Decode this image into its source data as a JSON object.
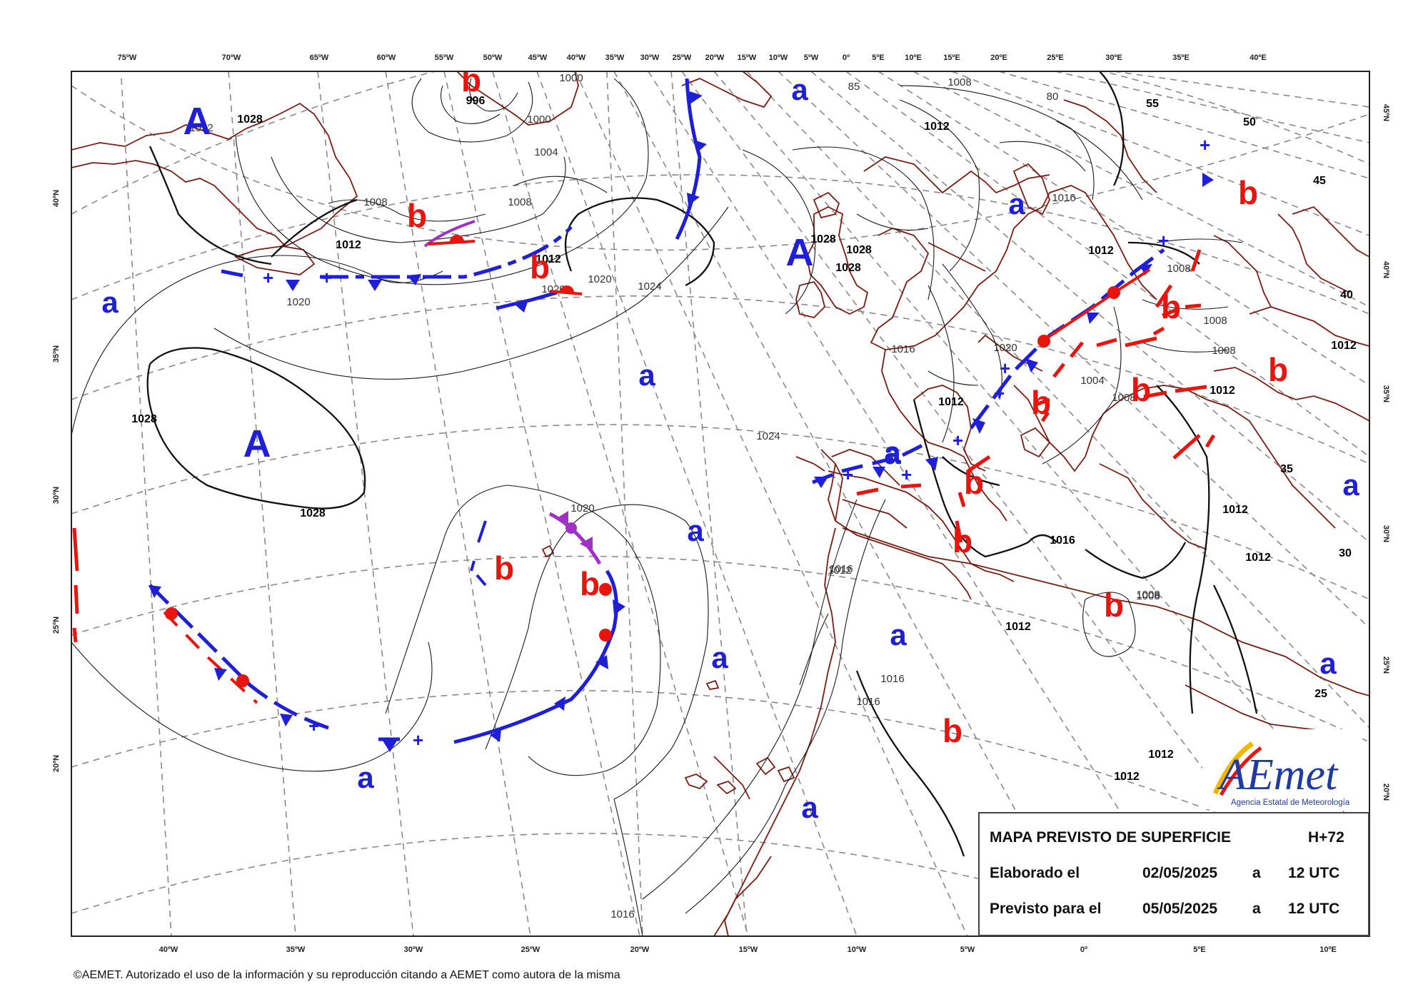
{
  "map": {
    "top_longitudes": [
      "75ºW",
      "70ºW",
      "65ºW",
      "60ºW",
      "55ºW",
      "50ºW",
      "45ºW",
      "40ºW",
      "35ºW",
      "30ºW",
      "25ºW",
      "20ºW",
      "15ºW",
      "10ºW",
      "5ºW",
      "0º",
      "5ºE",
      "10ºE",
      "15ºE",
      "20ºE",
      "25ºE",
      "30ºE",
      "35ºE",
      "40ºE"
    ],
    "bottom_longitudes": [
      "40ºW",
      "35ºW",
      "30ºW",
      "25ºW",
      "20ºW",
      "15ºW",
      "10ºW",
      "5ºW",
      "0º",
      "5ºE",
      "10ºE"
    ],
    "left_latitudes": [
      "40ºN",
      "35ºN",
      "30ºN",
      "25ºN",
      "20ºN"
    ],
    "right_latitudes": [
      "45ºN",
      "40ºN",
      "35ºN",
      "30ºN",
      "25ºN",
      "20ºN"
    ],
    "isobar_labels": [
      "1028",
      "1032",
      "1008",
      "1012",
      "1020",
      "1000",
      "1000",
      "996",
      "1004",
      "1008",
      "1020",
      "1024",
      "1012",
      "1020",
      "1028",
      "1028",
      "1028",
      "1028",
      "1024",
      "1028",
      "1016",
      "1008",
      "1012",
      "1012",
      "1016",
      "1020",
      "1004",
      "1008",
      "1008",
      "1008",
      "1008",
      "1012",
      "1012",
      "1012",
      "1016",
      "1016",
      "1016",
      "1016",
      "1012",
      "1012",
      "1012",
      "1012",
      "1008",
      "1012",
      "1012",
      "1020",
      "1016",
      "85",
      "80",
      "55",
      "50",
      "45",
      "40",
      "35",
      "30",
      "25",
      "1008"
    ],
    "pressure_centers": [
      {
        "label": "A"
      },
      {
        "label": "A"
      },
      {
        "label": "A"
      },
      {
        "label": "a"
      },
      {
        "label": "a"
      },
      {
        "label": "a"
      },
      {
        "label": "a"
      },
      {
        "label": "a"
      },
      {
        "label": "a"
      },
      {
        "label": "a"
      },
      {
        "label": "a"
      },
      {
        "label": "a"
      },
      {
        "label": "a"
      },
      {
        "label": "a"
      },
      {
        "label": "a"
      },
      {
        "label": "a"
      },
      {
        "label": "b"
      },
      {
        "label": "b"
      },
      {
        "label": "b"
      },
      {
        "label": "b"
      },
      {
        "label": "b"
      },
      {
        "label": "b"
      },
      {
        "label": "b"
      },
      {
        "label": "b"
      },
      {
        "label": "b"
      },
      {
        "label": "b"
      },
      {
        "label": "b"
      },
      {
        "label": "b"
      },
      {
        "label": "b"
      },
      {
        "label": "b"
      },
      {
        "label": "b"
      }
    ],
    "colors": {
      "high": "#1f1fd6",
      "low": "#e8150f",
      "occluded": "#a030c8",
      "coast": "#7a1c12",
      "grid": "#8a8a8a"
    }
  },
  "info_box": {
    "title": "MAPA PREVISTO DE SUPERFICIE",
    "horizon": "H+72",
    "row1_label": "Elaborado el",
    "row1_date": "02/05/2025",
    "row1_a": "a",
    "row1_time": "12 UTC",
    "row2_label": "Previsto para el",
    "row2_date": "05/05/2025",
    "row2_a": "a",
    "row2_time": "12 UTC"
  },
  "logo": {
    "name": "AEmet",
    "subtitle": "Agencia Estatal de Meteorología"
  },
  "copyright": "©AEMET. Autorizado el uso de la información y su reproducción citando a AEMET como autora de la misma"
}
